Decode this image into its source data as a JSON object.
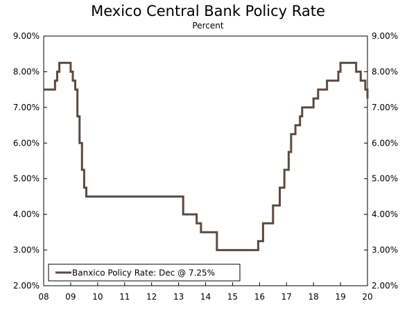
{
  "chart_data": {
    "type": "line",
    "title": "Mexico Central Bank Policy Rate",
    "subtitle": "Percent",
    "xlabel": "",
    "ylabel": "",
    "x_tick_labels": [
      "08",
      "09",
      "10",
      "11",
      "12",
      "13",
      "14",
      "15",
      "16",
      "17",
      "18",
      "19",
      "20"
    ],
    "xlim": [
      2008,
      2020
    ],
    "y_tick_labels": [
      "2.00%",
      "3.00%",
      "4.00%",
      "5.00%",
      "6.00%",
      "7.00%",
      "8.00%",
      "9.00%"
    ],
    "ylim": [
      2.0,
      9.0
    ],
    "grid": false,
    "legend_position": "bottom-left",
    "series": [
      {
        "name": "Banxico Policy Rate: Dec @ 7.25%",
        "color": "#5a4a42",
        "step": true,
        "points": [
          [
            2008.0,
            7.5
          ],
          [
            2008.42,
            7.75
          ],
          [
            2008.5,
            8.0
          ],
          [
            2008.58,
            8.25
          ],
          [
            2009.0,
            8.0
          ],
          [
            2009.08,
            7.75
          ],
          [
            2009.17,
            7.5
          ],
          [
            2009.25,
            6.75
          ],
          [
            2009.33,
            6.0
          ],
          [
            2009.42,
            5.25
          ],
          [
            2009.5,
            4.75
          ],
          [
            2009.58,
            4.5
          ],
          [
            2013.17,
            4.0
          ],
          [
            2013.67,
            3.75
          ],
          [
            2013.83,
            3.5
          ],
          [
            2014.42,
            3.0
          ],
          [
            2015.95,
            3.25
          ],
          [
            2016.13,
            3.75
          ],
          [
            2016.5,
            4.25
          ],
          [
            2016.75,
            4.75
          ],
          [
            2016.92,
            5.25
          ],
          [
            2017.08,
            5.75
          ],
          [
            2017.17,
            6.25
          ],
          [
            2017.33,
            6.5
          ],
          [
            2017.5,
            6.75
          ],
          [
            2017.58,
            7.0
          ],
          [
            2018.0,
            7.25
          ],
          [
            2018.17,
            7.5
          ],
          [
            2018.5,
            7.75
          ],
          [
            2018.92,
            8.0
          ],
          [
            2019.0,
            8.25
          ],
          [
            2019.58,
            8.0
          ],
          [
            2019.75,
            7.75
          ],
          [
            2019.92,
            7.5
          ],
          [
            2020.0,
            7.25
          ]
        ]
      }
    ]
  }
}
